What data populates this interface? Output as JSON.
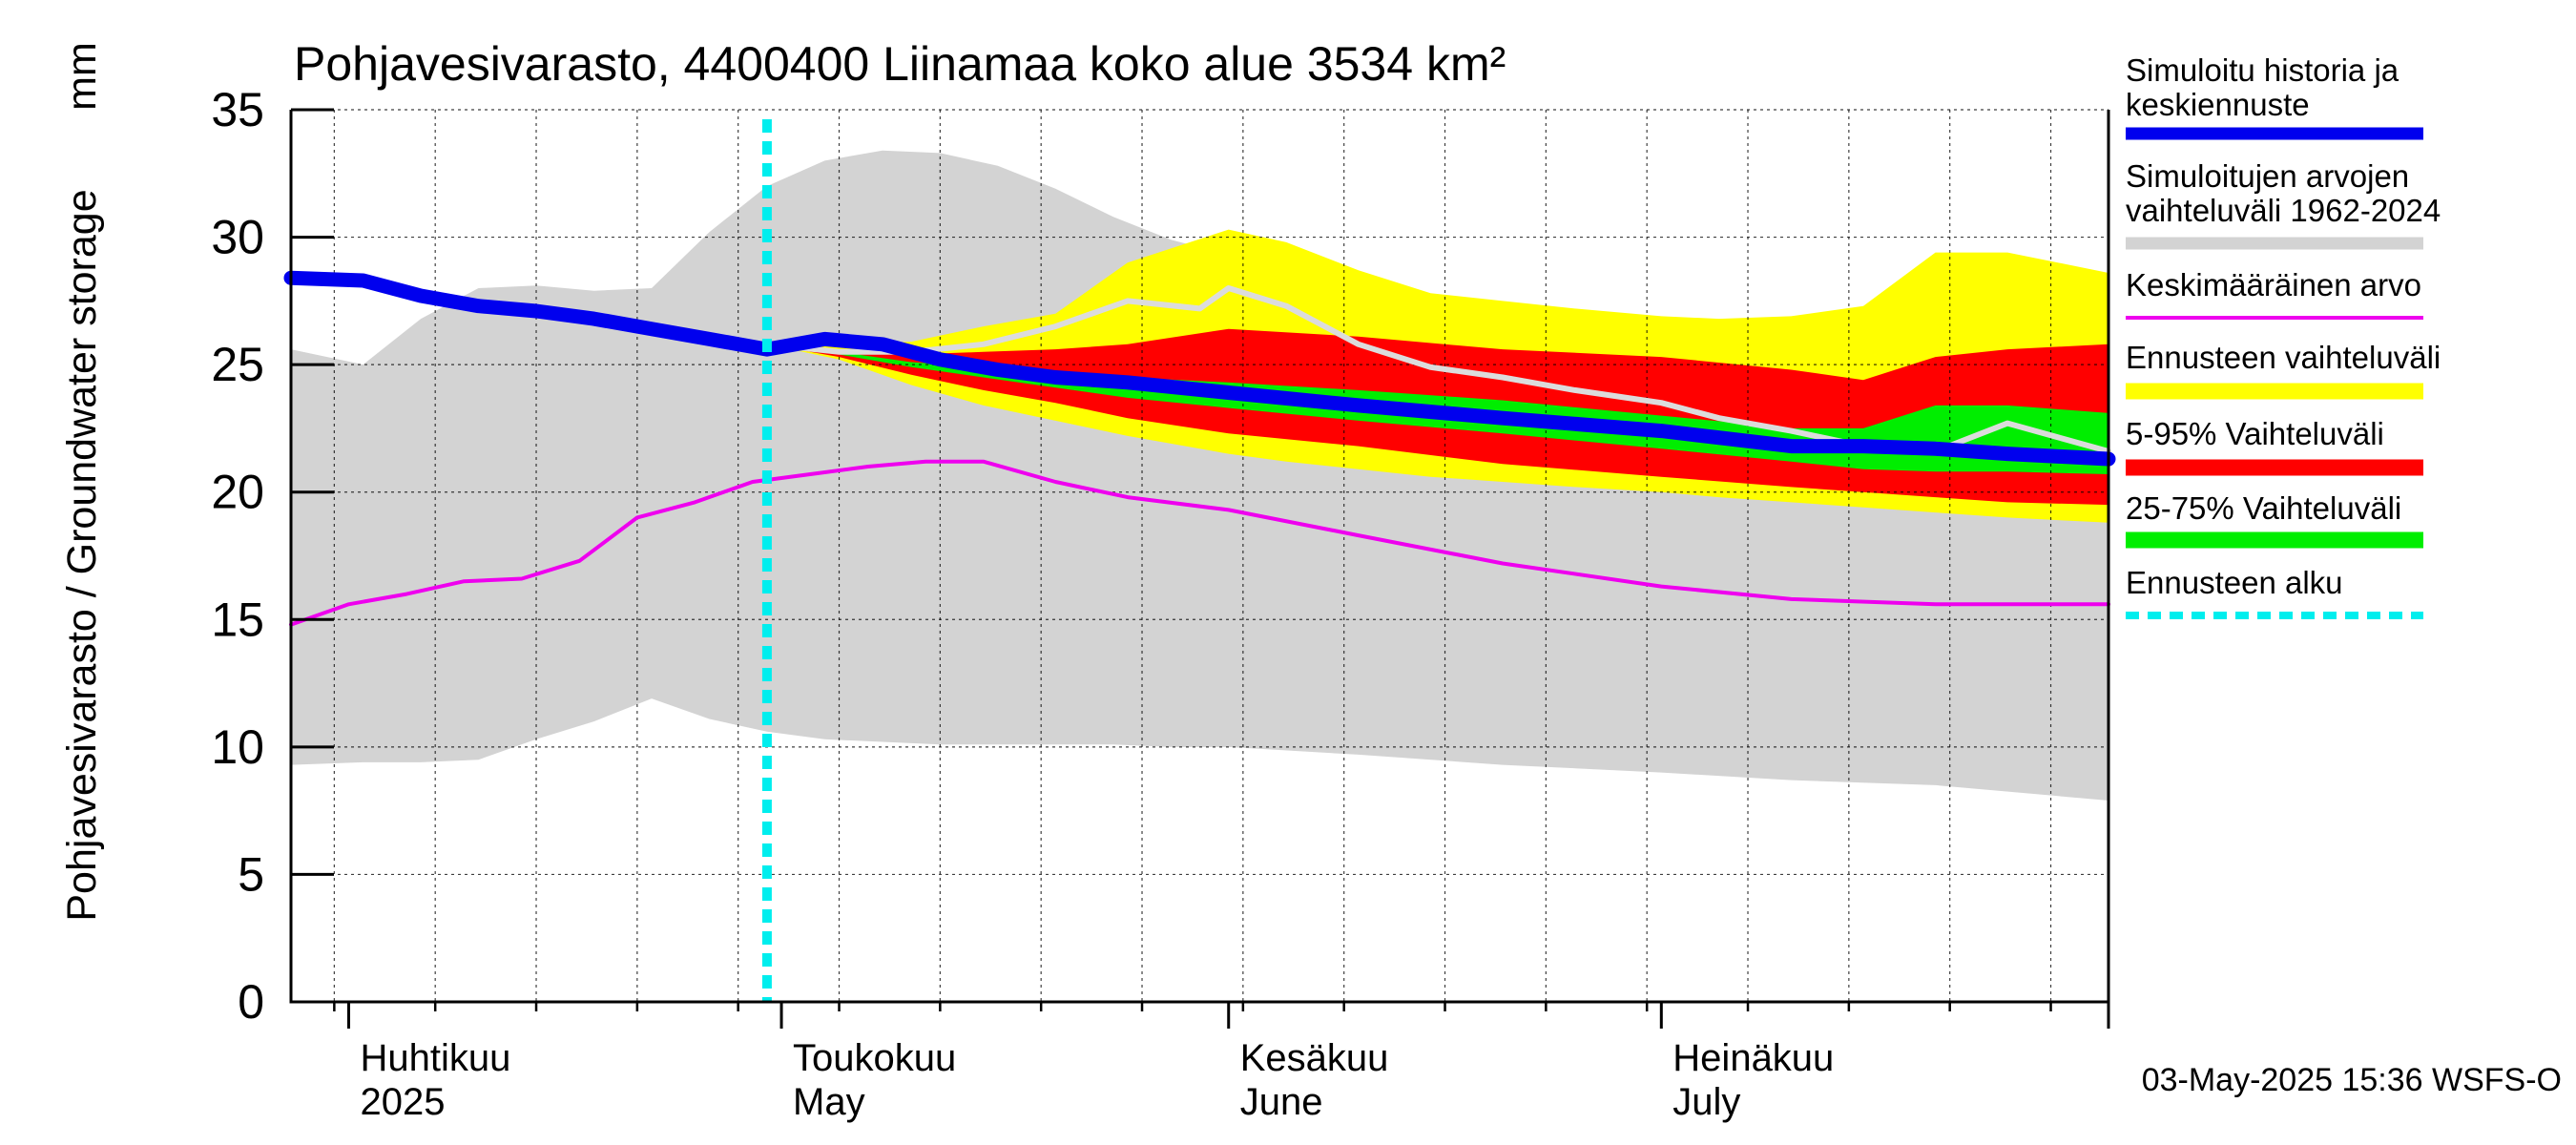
{
  "chart_data": {
    "type": "area",
    "title": "Pohjavesivarasto, 4400400 Liinamaa koko alue 3534 km²",
    "ylabel": "Pohjavesivarasto / Groundwater storage",
    "yunit": "mm",
    "ylim": [
      0,
      35
    ],
    "yticks": [
      0,
      5,
      10,
      15,
      20,
      25,
      30,
      35
    ],
    "xlim": [
      "2025-03-28",
      "2025-08-01"
    ],
    "grid": true,
    "legend_position": "right",
    "month_labels": [
      {
        "date": "2025-04-01",
        "fi": "Huhtikuu",
        "en": "2025"
      },
      {
        "date": "2025-05-01",
        "fi": "Toukokuu",
        "en": "May"
      },
      {
        "date": "2025-06-01",
        "fi": "Kesäkuu",
        "en": "June"
      },
      {
        "date": "2025-07-01",
        "fi": "Heinäkuu",
        "en": "July"
      }
    ],
    "forecast_start": "2025-04-30",
    "timestamp": "03-May-2025 15:36 WSFS-O",
    "colors": {
      "history_range": "#d3d3d3",
      "forecast_range": "#ffff00",
      "p5_95": "#ff0000",
      "p25_75": "#00ee00",
      "simulated": "#0000ee",
      "mean": "#ee00ee",
      "forecast_start": "#00eeee",
      "grey_line": "#dcdcdc"
    },
    "legend": [
      {
        "label": "Simuloitu historia ja keskiennuste",
        "color": "#0000ee",
        "style": "thick"
      },
      {
        "label": "Simuloitujen arvojen vaihteluväli 1962-2024",
        "color": "#d3d3d3",
        "style": "band"
      },
      {
        "label": "Keskimääräinen arvo",
        "color": "#ee00ee",
        "style": "thin"
      },
      {
        "label": "Ennusteen vaihteluväli",
        "color": "#ffff00",
        "style": "band"
      },
      {
        "label": "5-95% Vaihteluväli",
        "color": "#ff0000",
        "style": "band"
      },
      {
        "label": "25-75% Vaihteluväli",
        "color": "#00ee00",
        "style": "band"
      },
      {
        "label": "Ennusteen alku",
        "color": "#00eeee",
        "style": "dashed"
      }
    ],
    "series": [
      {
        "name": "Simuloitujen arvojen vaihteluväli 1962-2024",
        "kind": "band",
        "x": [
          "2025-03-28",
          "2025-04-02",
          "2025-04-06",
          "2025-04-10",
          "2025-04-14",
          "2025-04-18",
          "2025-04-22",
          "2025-04-26",
          "2025-04-30",
          "2025-05-04",
          "2025-05-08",
          "2025-05-12",
          "2025-05-16",
          "2025-05-20",
          "2025-05-24",
          "2025-05-28",
          "2025-06-01",
          "2025-06-10",
          "2025-06-20",
          "2025-07-01",
          "2025-07-10",
          "2025-07-20",
          "2025-08-01"
        ],
        "upper": [
          25.6,
          25.0,
          26.8,
          28.0,
          28.1,
          27.9,
          28.0,
          30.2,
          32.0,
          33.0,
          33.4,
          33.3,
          32.8,
          31.9,
          30.8,
          29.9,
          29.3,
          27.7,
          26.6,
          25.2,
          24.4,
          23.6,
          22.8
        ],
        "lower": [
          9.3,
          9.4,
          9.4,
          9.5,
          10.3,
          11.0,
          11.9,
          11.1,
          10.6,
          10.3,
          10.2,
          10.1,
          10.1,
          10.1,
          10.1,
          10.0,
          10.0,
          9.7,
          9.3,
          9.0,
          8.7,
          8.5,
          7.9
        ]
      },
      {
        "name": "Ennusteen vaihteluväli",
        "kind": "band",
        "x": [
          "2025-04-30",
          "2025-05-05",
          "2025-05-10",
          "2025-05-15",
          "2025-05-20",
          "2025-05-25",
          "2025-06-01",
          "2025-06-05",
          "2025-06-10",
          "2025-06-15",
          "2025-06-20",
          "2025-06-25",
          "2025-07-01",
          "2025-07-05",
          "2025-07-10",
          "2025-07-15",
          "2025-07-20",
          "2025-07-25",
          "2025-08-01"
        ],
        "upper": [
          25.8,
          25.8,
          25.9,
          26.5,
          27.0,
          29.0,
          30.3,
          29.8,
          28.7,
          27.8,
          27.5,
          27.2,
          26.9,
          26.8,
          26.9,
          27.3,
          29.4,
          29.4,
          28.6
        ],
        "lower": [
          25.8,
          25.2,
          24.2,
          23.4,
          22.8,
          22.2,
          21.5,
          21.2,
          20.9,
          20.6,
          20.4,
          20.2,
          20.0,
          19.8,
          19.6,
          19.4,
          19.2,
          19.0,
          18.8
        ]
      },
      {
        "name": "5-95% Vaihteluväli",
        "kind": "band",
        "x": [
          "2025-04-30",
          "2025-05-05",
          "2025-05-10",
          "2025-05-15",
          "2025-05-20",
          "2025-05-25",
          "2025-06-01",
          "2025-06-10",
          "2025-06-20",
          "2025-07-01",
          "2025-07-10",
          "2025-07-15",
          "2025-07-20",
          "2025-07-25",
          "2025-08-01"
        ],
        "upper": [
          25.8,
          25.6,
          25.4,
          25.5,
          25.6,
          25.8,
          26.4,
          26.1,
          25.6,
          25.3,
          24.8,
          24.4,
          25.3,
          25.6,
          25.8
        ],
        "lower": [
          25.8,
          25.3,
          24.6,
          24.0,
          23.5,
          22.9,
          22.3,
          21.8,
          21.1,
          20.6,
          20.2,
          20.0,
          19.8,
          19.6,
          19.5
        ]
      },
      {
        "name": "25-75% Vaihteluväli",
        "kind": "band",
        "x": [
          "2025-04-30",
          "2025-05-05",
          "2025-05-10",
          "2025-05-15",
          "2025-05-20",
          "2025-05-25",
          "2025-06-01",
          "2025-06-10",
          "2025-06-20",
          "2025-07-01",
          "2025-07-10",
          "2025-07-15",
          "2025-07-20",
          "2025-07-25",
          "2025-08-01"
        ],
        "upper": [
          25.8,
          25.5,
          25.1,
          24.9,
          24.7,
          24.5,
          24.3,
          24.0,
          23.6,
          23.0,
          22.5,
          22.5,
          23.4,
          23.4,
          23.1
        ],
        "lower": [
          25.8,
          25.4,
          24.9,
          24.5,
          24.1,
          23.7,
          23.3,
          22.8,
          22.3,
          21.7,
          21.2,
          20.9,
          20.8,
          20.8,
          20.7
        ]
      },
      {
        "name": "",
        "kind": "line",
        "color": "#dcdcdc",
        "x": [
          "2025-04-30",
          "2025-05-05",
          "2025-05-10",
          "2025-05-15",
          "2025-05-20",
          "2025-05-25",
          "2025-05-30",
          "2025-06-01",
          "2025-06-05",
          "2025-06-10",
          "2025-06-15",
          "2025-06-20",
          "2025-06-25",
          "2025-07-01",
          "2025-07-05",
          "2025-07-10",
          "2025-07-15",
          "2025-07-20",
          "2025-07-25",
          "2025-08-01"
        ],
        "values": [
          25.8,
          25.5,
          25.5,
          25.8,
          26.5,
          27.5,
          27.2,
          28.0,
          27.3,
          25.8,
          24.9,
          24.5,
          24.0,
          23.5,
          22.9,
          22.4,
          21.8,
          21.6,
          22.7,
          21.6
        ]
      },
      {
        "name": "Keskimääräinen arvo",
        "kind": "line",
        "color": "#ee00ee",
        "x": [
          "2025-03-28",
          "2025-04-01",
          "2025-04-05",
          "2025-04-09",
          "2025-04-13",
          "2025-04-17",
          "2025-04-21",
          "2025-04-25",
          "2025-04-29",
          "2025-05-03",
          "2025-05-07",
          "2025-05-11",
          "2025-05-15",
          "2025-05-20",
          "2025-05-25",
          "2025-06-01",
          "2025-06-10",
          "2025-06-20",
          "2025-07-01",
          "2025-07-10",
          "2025-07-20",
          "2025-08-01"
        ],
        "values": [
          14.8,
          15.6,
          16.0,
          16.5,
          16.6,
          17.3,
          19.0,
          19.6,
          20.4,
          20.7,
          21.0,
          21.2,
          21.2,
          20.4,
          19.8,
          19.3,
          18.3,
          17.2,
          16.3,
          15.8,
          15.6,
          15.6
        ]
      },
      {
        "name": "Simuloitu historia ja keskiennuste",
        "kind": "line",
        "color": "#0000ee",
        "x": [
          "2025-03-28",
          "2025-04-02",
          "2025-04-06",
          "2025-04-10",
          "2025-04-14",
          "2025-04-18",
          "2025-04-22",
          "2025-04-26",
          "2025-04-30",
          "2025-05-04",
          "2025-05-08",
          "2025-05-12",
          "2025-05-16",
          "2025-05-20",
          "2025-05-25",
          "2025-06-01",
          "2025-06-10",
          "2025-06-20",
          "2025-07-01",
          "2025-07-10",
          "2025-07-15",
          "2025-07-20",
          "2025-07-25",
          "2025-08-01"
        ],
        "values": [
          28.4,
          28.3,
          27.7,
          27.3,
          27.1,
          26.8,
          26.4,
          26.0,
          25.6,
          26.0,
          25.8,
          25.2,
          24.8,
          24.5,
          24.3,
          23.9,
          23.4,
          22.9,
          22.4,
          21.8,
          21.8,
          21.7,
          21.5,
          21.3
        ]
      }
    ]
  }
}
